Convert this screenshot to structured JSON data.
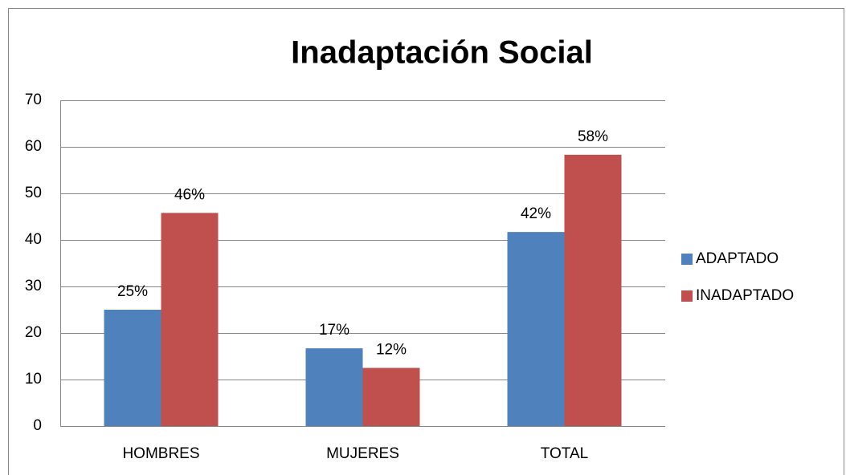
{
  "chart_data": {
    "type": "bar",
    "title": "Inadaptación Social",
    "categories": [
      "HOMBRES",
      "MUJERES",
      "TOTAL"
    ],
    "series": [
      {
        "name": "ADAPTADO",
        "color": "#4f81bd",
        "values": [
          25,
          16.7,
          41.7
        ],
        "value_labels": [
          "25%",
          "17%",
          "42%"
        ]
      },
      {
        "name": "INADAPTADO",
        "color": "#c0504d",
        "values": [
          45.8,
          12.5,
          58.3
        ],
        "value_labels": [
          "46%",
          "12%",
          "58%"
        ]
      }
    ],
    "ylim": [
      0,
      70
    ],
    "yticks": [
      0,
      10,
      20,
      30,
      40,
      50,
      60,
      70
    ],
    "grid": true,
    "legend": "right"
  }
}
